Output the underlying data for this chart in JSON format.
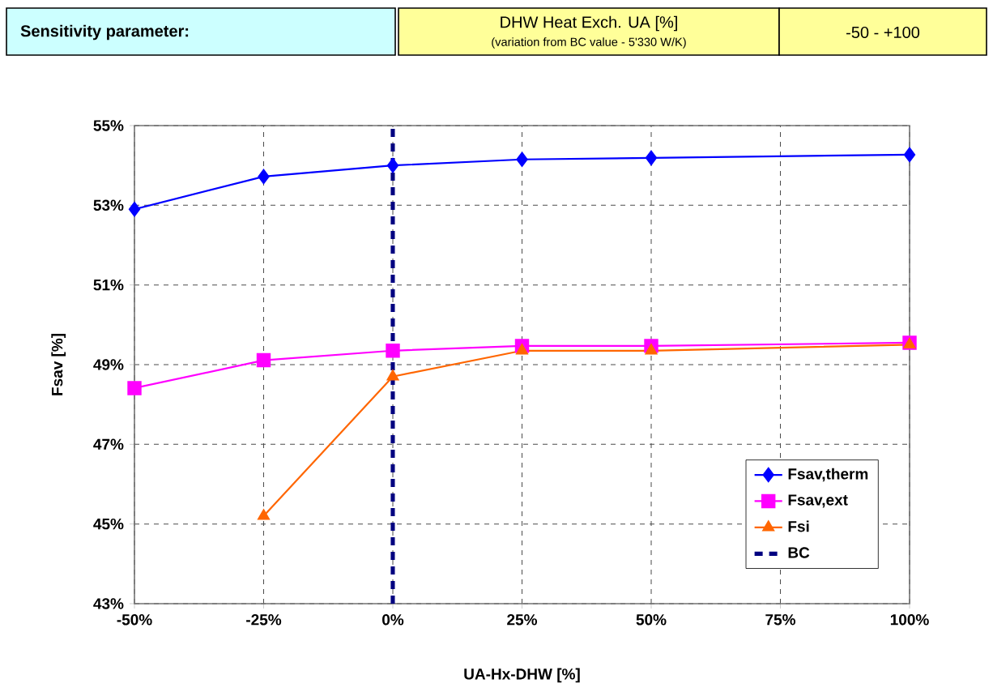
{
  "chart_data": {
    "type": "line",
    "title": "DHW Heat Exch. UA  [%]",
    "subtitle": "(variation from BC value - 5'330 W/K)",
    "annotations": [
      "Sensitivity parameter:",
      "-50  -  +100"
    ],
    "xlabel": "UA-Hx-DHW [%]",
    "ylabel": "Fsav [%]",
    "x": [
      -50,
      -25,
      0,
      25,
      50,
      100
    ],
    "series": [
      {
        "name": "Fsav,therm",
        "color": "#0000ff",
        "marker": "diamond",
        "values": [
          52.9,
          53.72,
          54.0,
          54.15,
          54.19,
          54.27
        ]
      },
      {
        "name": "Fsav,ext",
        "color": "#ff00ff",
        "marker": "square",
        "values": [
          48.41,
          49.11,
          49.35,
          49.47,
          49.47,
          49.55
        ]
      },
      {
        "name": "Fsi",
        "color": "#ff6600",
        "marker": "triangle",
        "values": [
          null,
          45.2,
          48.7,
          49.35,
          49.35,
          49.5
        ]
      },
      {
        "name": "BC",
        "color": "#000080",
        "marker": "none",
        "line_style": "dashed",
        "x": [
          0,
          0
        ],
        "values": [
          43,
          55
        ]
      }
    ],
    "xlim": [
      -50,
      100
    ],
    "ylim": [
      43,
      55
    ],
    "xticks": [
      {
        "value": -50,
        "label": "-50%"
      },
      {
        "value": -25,
        "label": "-25%"
      },
      {
        "value": 0,
        "label": "0%"
      },
      {
        "value": 25,
        "label": "25%"
      },
      {
        "value": 50,
        "label": "50%"
      },
      {
        "value": 75,
        "label": "75%"
      },
      {
        "value": 100,
        "label": "100%"
      }
    ],
    "yticks": [
      {
        "value": 43,
        "label": "43%"
      },
      {
        "value": 45,
        "label": "45%"
      },
      {
        "value": 47,
        "label": "47%"
      },
      {
        "value": 49,
        "label": "49%"
      },
      {
        "value": 51,
        "label": "51%"
      },
      {
        "value": 53,
        "label": "53%"
      },
      {
        "value": 55,
        "label": "55%"
      }
    ],
    "grid": true,
    "legend": "bottom right"
  }
}
